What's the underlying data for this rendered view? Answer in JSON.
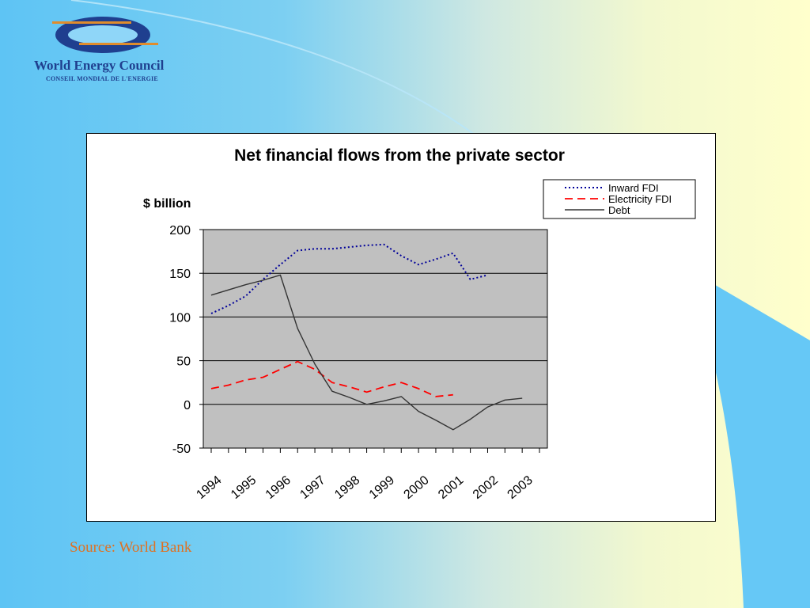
{
  "logo": {
    "name": "World Energy Council",
    "subtitle": "CONSEIL MONDIAL DE L'ENERGIE"
  },
  "colors": {
    "background_blue": "#66c8f6",
    "background_yellow": "#ffffcc",
    "plot_area": "#c0c0c0",
    "inward_fdi": "#000099",
    "electricity_fdi": "#ff0000",
    "debt": "#333333",
    "source_text": "#e07020",
    "logo_blue": "#1f3f8f",
    "logo_orange": "#e08c2c"
  },
  "source": "Source:  World Bank",
  "chart_data": {
    "type": "line",
    "title": "Net financial flows from the private sector",
    "ylabel": "$ billion",
    "xlabel": "",
    "ylim": [
      -50,
      200
    ],
    "yticks": [
      200,
      150,
      100,
      50,
      0,
      -50
    ],
    "grid": true,
    "legend_position": "top-right",
    "categories": [
      "1994",
      "1995",
      "1996",
      "1997",
      "1998",
      "1999",
      "2000",
      "2001",
      "2002",
      "2003"
    ],
    "x": [
      1994,
      1994.5,
      1995,
      1995.5,
      1996,
      1996.5,
      1997,
      1997.5,
      1998,
      1998.5,
      1999,
      1999.5,
      2000,
      2000.5,
      2001,
      2001.5,
      2002,
      2002.5,
      2003,
      2003.5
    ],
    "series": [
      {
        "name": "Inward FDI",
        "style": "dotted",
        "values": [
          104,
          113,
          124,
          143,
          160,
          176,
          178,
          178,
          180,
          182,
          183,
          170,
          160,
          166,
          173,
          143,
          148,
          null,
          null,
          null
        ]
      },
      {
        "name": "Electricity FDI",
        "style": "dashed",
        "values": [
          18,
          22,
          28,
          31,
          40,
          49,
          40,
          25,
          20,
          14,
          20,
          25,
          18,
          9,
          11,
          null,
          null,
          null,
          null,
          null
        ]
      },
      {
        "name": "Debt",
        "style": "solid",
        "values": [
          125,
          131,
          137,
          142,
          148,
          87,
          46,
          15,
          8,
          0,
          4,
          9,
          -8,
          -18,
          -29,
          -17,
          -3,
          5,
          7,
          null
        ]
      }
    ]
  }
}
